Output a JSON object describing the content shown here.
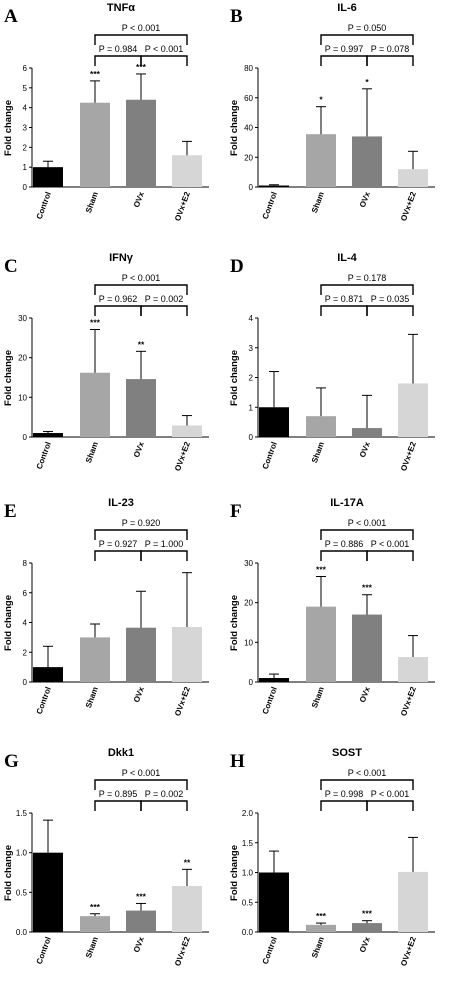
{
  "figure": {
    "panels": [
      {
        "letter": "A",
        "title": "TNFα",
        "ylabel": "Fold change",
        "yticks": [
          "0",
          "1",
          "2",
          "3",
          "4",
          "5",
          "6"
        ],
        "ylim": [
          0,
          6
        ]
      },
      {
        "letter": "B",
        "title": "IL-6",
        "ylabel": "Fold change",
        "yticks": [
          "0",
          "20",
          "40",
          "60",
          "80"
        ],
        "ylim": [
          0,
          80
        ]
      },
      {
        "letter": "C",
        "title": "IFNγ",
        "ylabel": "Fold change",
        "yticks": [
          "0",
          "10",
          "20",
          "30"
        ],
        "ylim": [
          0,
          30
        ]
      },
      {
        "letter": "D",
        "title": "IL-4",
        "ylabel": "Fold change",
        "yticks": [
          "0",
          "1",
          "2",
          "3",
          "4"
        ],
        "ylim": [
          0,
          4
        ]
      },
      {
        "letter": "E",
        "title": "IL-23",
        "ylabel": "Fold change",
        "yticks": [
          "0",
          "2",
          "4",
          "6",
          "8"
        ],
        "ylim": [
          0,
          8
        ]
      },
      {
        "letter": "F",
        "title": "IL-17A",
        "ylabel": "Fold change",
        "yticks": [
          "0",
          "10",
          "20",
          "30"
        ],
        "ylim": [
          0,
          30
        ]
      },
      {
        "letter": "G",
        "title": "Dkk1",
        "ylabel": "Fold change",
        "yticks": [
          "0.0",
          "0.5",
          "1.0",
          "1.5"
        ],
        "ylim": [
          0,
          1.5
        ]
      },
      {
        "letter": "H",
        "title": "SOST",
        "ylabel": "Fold change",
        "yticks": [
          "0.0",
          "0.5",
          "1.0",
          "1.5",
          "2.0"
        ],
        "ylim": [
          0,
          2.0
        ]
      }
    ]
  },
  "chart_data": [
    {
      "type": "bar",
      "title": "TNFα",
      "ylabel": "Fold change",
      "ylim": [
        0,
        6
      ],
      "categories": [
        "Control",
        "Sham",
        "OVx",
        "OVx+E2"
      ],
      "values": [
        1.0,
        4.25,
        4.4,
        1.6
      ],
      "errors": [
        0.3,
        1.1,
        1.3,
        0.7
      ],
      "significance": [
        "",
        "***",
        "***",
        ""
      ],
      "comparisons": [
        {
          "p": "P = 0.984",
          "groups": [
            "Sham",
            "OVx"
          ]
        },
        {
          "p": "P < 0.001",
          "groups": [
            "OVx",
            "OVx+E2"
          ]
        },
        {
          "p": "P < 0.001",
          "groups": [
            "Sham",
            "OVx+E2"
          ]
        }
      ],
      "colors": [
        "#000000",
        "#a6a6a6",
        "#808080",
        "#d6d6d6"
      ]
    },
    {
      "type": "bar",
      "title": "IL-6",
      "ylabel": "Fold change",
      "ylim": [
        0,
        80
      ],
      "categories": [
        "Control",
        "Sham",
        "OVx",
        "OVx+E2"
      ],
      "values": [
        1.0,
        35.5,
        34.0,
        12.0
      ],
      "errors": [
        0.5,
        18.5,
        32.0,
        12.0
      ],
      "significance": [
        "",
        "*",
        "*",
        ""
      ],
      "comparisons": [
        {
          "p": "P = 0.997",
          "groups": [
            "Sham",
            "OVx"
          ]
        },
        {
          "p": "P = 0.078",
          "groups": [
            "OVx",
            "OVx+E2"
          ]
        },
        {
          "p": "P = 0.050",
          "groups": [
            "Sham",
            "OVx+E2"
          ]
        }
      ],
      "colors": [
        "#000000",
        "#a6a6a6",
        "#808080",
        "#d6d6d6"
      ]
    },
    {
      "type": "bar",
      "title": "IFNγ",
      "ylabel": "Fold change",
      "ylim": [
        0,
        30
      ],
      "categories": [
        "Control",
        "Sham",
        "OVx",
        "OVx+E2"
      ],
      "values": [
        1.0,
        16.2,
        14.6,
        2.9
      ],
      "errors": [
        0.4,
        10.9,
        7.0,
        2.5
      ],
      "significance": [
        "",
        "***",
        "**",
        ""
      ],
      "comparisons": [
        {
          "p": "P = 0.962",
          "groups": [
            "Sham",
            "OVx"
          ]
        },
        {
          "p": "P = 0.002",
          "groups": [
            "OVx",
            "OVx+E2"
          ]
        },
        {
          "p": "P < 0.001",
          "groups": [
            "Sham",
            "OVx+E2"
          ]
        }
      ],
      "colors": [
        "#000000",
        "#a6a6a6",
        "#808080",
        "#d6d6d6"
      ]
    },
    {
      "type": "bar",
      "title": "IL-4",
      "ylabel": "Fold change",
      "ylim": [
        0,
        4
      ],
      "categories": [
        "Control",
        "Sham",
        "OVx",
        "OVx+E2"
      ],
      "values": [
        1.0,
        0.7,
        0.3,
        1.8
      ],
      "errors": [
        1.2,
        0.95,
        1.1,
        1.65
      ],
      "significance": [
        "",
        "",
        "",
        ""
      ],
      "comparisons": [
        {
          "p": "P = 0.871",
          "groups": [
            "Sham",
            "OVx"
          ]
        },
        {
          "p": "P = 0.035",
          "groups": [
            "OVx",
            "OVx+E2"
          ]
        },
        {
          "p": "P = 0.178",
          "groups": [
            "Sham",
            "OVx+E2"
          ]
        }
      ],
      "colors": [
        "#000000",
        "#a6a6a6",
        "#808080",
        "#d6d6d6"
      ]
    },
    {
      "type": "bar",
      "title": "IL-23",
      "ylabel": "Fold change",
      "ylim": [
        0,
        8
      ],
      "categories": [
        "Control",
        "Sham",
        "OVx",
        "OVx+E2"
      ],
      "values": [
        1.0,
        3.0,
        3.65,
        3.7
      ],
      "errors": [
        1.4,
        0.9,
        2.45,
        3.65
      ],
      "significance": [
        "",
        "",
        "",
        ""
      ],
      "comparisons": [
        {
          "p": "P = 0.927",
          "groups": [
            "Sham",
            "OVx"
          ]
        },
        {
          "p": "P = 1.000",
          "groups": [
            "OVx",
            "OVx+E2"
          ]
        },
        {
          "p": "P = 0.920",
          "groups": [
            "Sham",
            "OVx+E2"
          ]
        }
      ],
      "colors": [
        "#000000",
        "#a6a6a6",
        "#808080",
        "#d6d6d6"
      ]
    },
    {
      "type": "bar",
      "title": "IL-17A",
      "ylabel": "Fold change",
      "ylim": [
        0,
        30
      ],
      "categories": [
        "Control",
        "Sham",
        "OVx",
        "OVx+E2"
      ],
      "values": [
        1.0,
        19.0,
        17.0,
        6.3
      ],
      "errors": [
        1.0,
        7.6,
        5.0,
        5.4
      ],
      "significance": [
        "",
        "***",
        "***",
        ""
      ],
      "comparisons": [
        {
          "p": "P = 0.886",
          "groups": [
            "Sham",
            "OVx"
          ]
        },
        {
          "p": "P < 0.001",
          "groups": [
            "OVx",
            "OVx+E2"
          ]
        },
        {
          "p": "P < 0.001",
          "groups": [
            "Sham",
            "OVx+E2"
          ]
        }
      ],
      "colors": [
        "#000000",
        "#a6a6a6",
        "#808080",
        "#d6d6d6"
      ]
    },
    {
      "type": "bar",
      "title": "Dkk1",
      "ylabel": "Fold change",
      "ylim": [
        0,
        1.5
      ],
      "categories": [
        "Control",
        "Sham",
        "OVx",
        "OVx+E2"
      ],
      "values": [
        1.0,
        0.2,
        0.27,
        0.58
      ],
      "errors": [
        0.41,
        0.03,
        0.09,
        0.21
      ],
      "significance": [
        "",
        "***",
        "***",
        "**"
      ],
      "comparisons": [
        {
          "p": "P = 0.895",
          "groups": [
            "Sham",
            "OVx"
          ]
        },
        {
          "p": "P = 0.002",
          "groups": [
            "OVx",
            "OVx+E2"
          ]
        },
        {
          "p": "P < 0.001",
          "groups": [
            "Sham",
            "OVx+E2"
          ]
        }
      ],
      "colors": [
        "#000000",
        "#a6a6a6",
        "#808080",
        "#d6d6d6"
      ]
    },
    {
      "type": "bar",
      "title": "SOST",
      "ylabel": "Fold change",
      "ylim": [
        0,
        2.0
      ],
      "categories": [
        "Control",
        "Sham",
        "OVx",
        "OVx+E2"
      ],
      "values": [
        1.0,
        0.12,
        0.15,
        1.01
      ],
      "errors": [
        0.36,
        0.03,
        0.04,
        0.58
      ],
      "significance": [
        "",
        "***",
        "***",
        ""
      ],
      "comparisons": [
        {
          "p": "P = 0.998",
          "groups": [
            "Sham",
            "OVx"
          ]
        },
        {
          "p": "P < 0.001",
          "groups": [
            "OVx",
            "OVx+E2"
          ]
        },
        {
          "p": "P < 0.001",
          "groups": [
            "Sham",
            "OVx+E2"
          ]
        }
      ],
      "colors": [
        "#000000",
        "#a6a6a6",
        "#808080",
        "#d6d6d6"
      ]
    }
  ]
}
